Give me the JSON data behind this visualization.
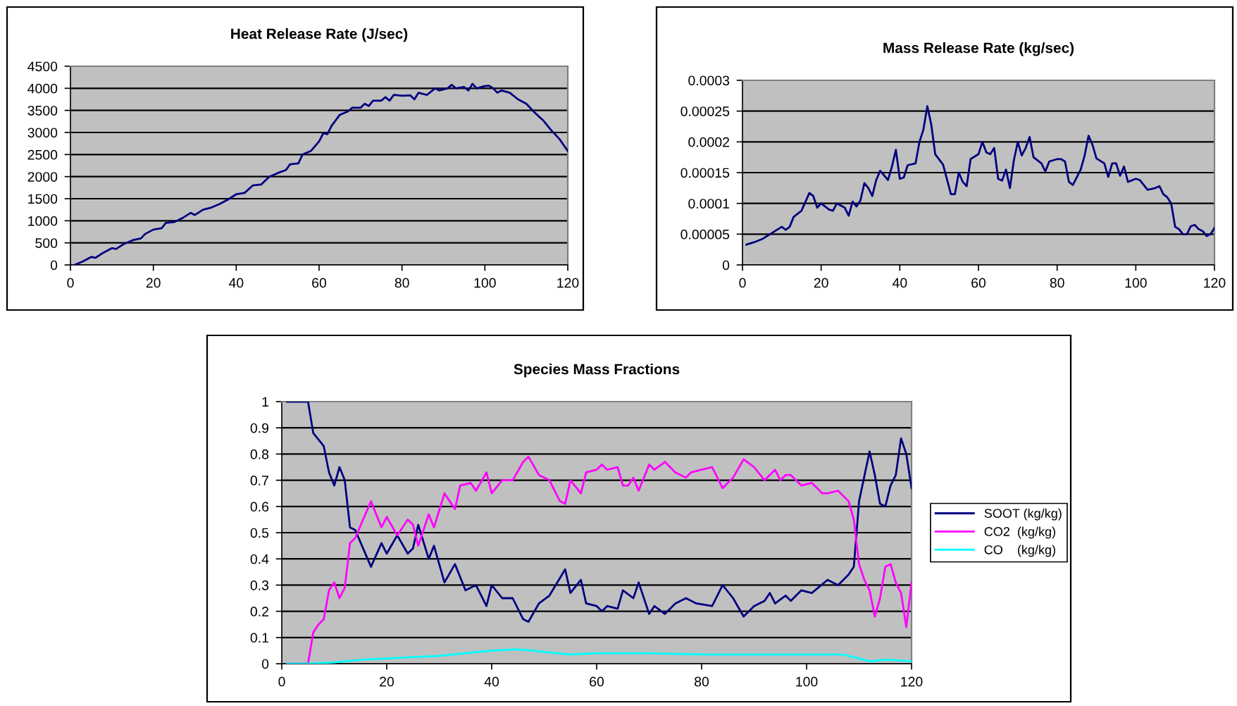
{
  "chart_data": [
    {
      "type": "line",
      "title": "Heat Release Rate (J/sec)",
      "xlim": [
        0,
        120
      ],
      "xticks": [
        0,
        20,
        40,
        60,
        80,
        100,
        120
      ],
      "ylim": [
        0,
        4500
      ],
      "yticks": [
        0,
        500,
        1000,
        1500,
        2000,
        2500,
        3000,
        3500,
        4000,
        4500
      ],
      "grid": "y",
      "legend": false,
      "series": [
        {
          "color": "#000080",
          "x": [
            1,
            3,
            5,
            6,
            8,
            10,
            11,
            13,
            15,
            17,
            18,
            20,
            22,
            23,
            25,
            27,
            29,
            30,
            32,
            34,
            36,
            38,
            40,
            42,
            44,
            46,
            48,
            50,
            52,
            53,
            55,
            56,
            58,
            60,
            61,
            62,
            63,
            65,
            67,
            68,
            70,
            71,
            72,
            73,
            75,
            76,
            77,
            78,
            80,
            82,
            83,
            84,
            86,
            88,
            89,
            91,
            92,
            93,
            95,
            96,
            97,
            98,
            100,
            101,
            102,
            103,
            104,
            106,
            108,
            110,
            112,
            114,
            116,
            118,
            120
          ],
          "values": [
            0,
            80,
            180,
            160,
            280,
            380,
            360,
            480,
            560,
            600,
            700,
            800,
            830,
            950,
            970,
            1060,
            1180,
            1130,
            1250,
            1300,
            1380,
            1480,
            1600,
            1630,
            1800,
            1820,
            2000,
            2080,
            2150,
            2280,
            2300,
            2500,
            2580,
            2800,
            2980,
            2960,
            3150,
            3400,
            3480,
            3560,
            3560,
            3650,
            3600,
            3720,
            3720,
            3800,
            3720,
            3850,
            3830,
            3840,
            3750,
            3900,
            3850,
            4000,
            3950,
            4000,
            4080,
            4000,
            4030,
            3950,
            4100,
            4000,
            4050,
            4060,
            4000,
            3900,
            3950,
            3900,
            3750,
            3650,
            3450,
            3280,
            3050,
            2850,
            2580
          ]
        }
      ]
    },
    {
      "type": "line",
      "title": "Mass Release Rate (kg/sec)",
      "xlim": [
        0,
        120
      ],
      "xticks": [
        0,
        20,
        40,
        60,
        80,
        100,
        120
      ],
      "ylim": [
        0,
        0.0003
      ],
      "yticks": [
        0,
        {
          "value": 5e-05,
          "label": "0.00005"
        },
        {
          "value": 0.0001,
          "label": "0.0001"
        },
        {
          "value": 0.00015,
          "label": "0.00015"
        },
        {
          "value": 0.0002,
          "label": "0.0002"
        },
        {
          "value": 0.00025,
          "label": "0.00025"
        },
        {
          "value": 0.0003,
          "label": "0.0003"
        }
      ],
      "grid": "y",
      "legend": false,
      "series": [
        {
          "color": "#000080",
          "x": [
            1,
            3,
            5,
            7,
            9,
            10,
            11,
            12,
            13,
            15,
            17,
            18,
            19,
            20,
            22,
            23,
            24,
            26,
            27,
            28,
            29,
            30,
            31,
            32,
            33,
            34,
            35,
            37,
            38,
            39,
            40,
            41,
            42,
            44,
            45,
            46,
            47,
            48,
            49,
            51,
            53,
            54,
            55,
            56,
            57,
            58,
            60,
            61,
            62,
            63,
            64,
            65,
            66,
            67,
            68,
            69,
            70,
            71,
            72,
            73,
            74,
            76,
            77,
            78,
            80,
            81,
            82,
            83,
            84,
            86,
            87,
            88,
            89,
            90,
            92,
            93,
            94,
            95,
            96,
            97,
            98,
            100,
            101,
            102,
            103,
            105,
            106,
            107,
            108,
            109,
            110,
            111,
            112,
            113,
            114,
            115,
            116,
            117,
            118,
            119,
            120
          ],
          "values": [
            3.3e-05,
            3.7e-05,
            4.2e-05,
            5e-05,
            5.8e-05,
            6.2e-05,
            5.7e-05,
            6.2e-05,
            7.8e-05,
            8.8e-05,
            0.000117,
            0.000112,
            9.3e-05,
            0.0001,
            9e-05,
            8.8e-05,
            0.0001,
            9.3e-05,
            8e-05,
            0.000103,
            9.5e-05,
            0.000105,
            0.000133,
            0.000125,
            0.000112,
            0.000138,
            0.000153,
            0.000138,
            0.00016,
            0.000187,
            0.00014,
            0.000142,
            0.000162,
            0.000165,
            0.0002,
            0.00022,
            0.000258,
            0.000228,
            0.00018,
            0.000163,
            0.000115,
            0.000115,
            0.00015,
            0.000135,
            0.000128,
            0.000172,
            0.00018,
            0.0002,
            0.000183,
            0.00018,
            0.00019,
            0.00014,
            0.000137,
            0.000155,
            0.000125,
            0.00017,
            0.0002,
            0.000178,
            0.00019,
            0.000208,
            0.000175,
            0.000165,
            0.000152,
            0.000168,
            0.000172,
            0.000172,
            0.000168,
            0.000135,
            0.00013,
            0.000155,
            0.000178,
            0.00021,
            0.000195,
            0.000173,
            0.000165,
            0.000143,
            0.000165,
            0.000165,
            0.000145,
            0.00016,
            0.000135,
            0.00014,
            0.000138,
            0.00013,
            0.000122,
            0.000125,
            0.000128,
            0.000115,
            0.00011,
            0.0001,
            6.2e-05,
            5.8e-05,
            5e-05,
            5e-05,
            6.3e-05,
            6.5e-05,
            5.8e-05,
            5.5e-05,
            4.7e-05,
            5e-05,
            6e-05
          ]
        }
      ]
    },
    {
      "type": "line",
      "title": "Species Mass Fractions",
      "xlim": [
        0,
        120
      ],
      "xticks": [
        0,
        20,
        40,
        60,
        80,
        100,
        120
      ],
      "ylim": [
        0,
        1
      ],
      "yticks": [
        0,
        0.1,
        0.2,
        0.3,
        0.4,
        0.5,
        0.6,
        0.7,
        0.8,
        0.9,
        1
      ],
      "grid": "y",
      "legend": "right",
      "series": [
        {
          "name": "SOOT (kg/kg)",
          "color": "#000080",
          "x": [
            1,
            5,
            6,
            8,
            9,
            10,
            11,
            12,
            13,
            14,
            17,
            19,
            20,
            22,
            24,
            25,
            26,
            28,
            29,
            31,
            33,
            35,
            37,
            39,
            40,
            42,
            44,
            46,
            47,
            49,
            51,
            54,
            55,
            57,
            58,
            60,
            61,
            62,
            64,
            65,
            67,
            68,
            70,
            71,
            73,
            75,
            77,
            79,
            82,
            84,
            86,
            88,
            90,
            92,
            93,
            94,
            96,
            97,
            99,
            101,
            104,
            106,
            108,
            109,
            110,
            112,
            113,
            114,
            115,
            116,
            117,
            118,
            119,
            120
          ],
          "values": [
            1,
            1,
            0.88,
            0.83,
            0.73,
            0.68,
            0.75,
            0.7,
            0.52,
            0.51,
            0.37,
            0.46,
            0.42,
            0.49,
            0.42,
            0.44,
            0.53,
            0.4,
            0.45,
            0.31,
            0.38,
            0.28,
            0.3,
            0.22,
            0.3,
            0.25,
            0.25,
            0.17,
            0.16,
            0.23,
            0.26,
            0.36,
            0.27,
            0.32,
            0.23,
            0.22,
            0.2,
            0.22,
            0.21,
            0.28,
            0.25,
            0.31,
            0.19,
            0.22,
            0.19,
            0.23,
            0.25,
            0.23,
            0.22,
            0.3,
            0.25,
            0.18,
            0.22,
            0.24,
            0.27,
            0.23,
            0.26,
            0.24,
            0.28,
            0.27,
            0.32,
            0.3,
            0.34,
            0.37,
            0.62,
            0.81,
            0.72,
            0.61,
            0.6,
            0.68,
            0.72,
            0.86,
            0.8,
            0.67
          ]
        },
        {
          "name": "CO2  (kg/kg)",
          "color": "#ff00ff",
          "x": [
            1,
            5,
            6,
            7,
            8,
            9,
            10,
            11,
            12,
            13,
            14,
            17,
            19,
            20,
            22,
            24,
            25,
            26,
            28,
            29,
            31,
            32,
            33,
            34,
            36,
            37,
            39,
            40,
            42,
            44,
            46,
            47,
            49,
            51,
            53,
            54,
            55,
            57,
            58,
            60,
            61,
            62,
            64,
            65,
            66,
            67,
            68,
            70,
            71,
            73,
            75,
            77,
            78,
            80,
            82,
            84,
            86,
            88,
            90,
            92,
            94,
            95,
            96,
            97,
            99,
            101,
            103,
            104,
            106,
            108,
            109,
            110,
            111,
            112,
            113,
            114,
            115,
            116,
            117,
            118,
            119,
            120
          ],
          "values": [
            0,
            0,
            0.12,
            0.15,
            0.17,
            0.28,
            0.31,
            0.25,
            0.29,
            0.46,
            0.48,
            0.62,
            0.52,
            0.56,
            0.49,
            0.55,
            0.53,
            0.45,
            0.57,
            0.52,
            0.65,
            0.62,
            0.59,
            0.68,
            0.69,
            0.66,
            0.73,
            0.65,
            0.7,
            0.7,
            0.77,
            0.79,
            0.72,
            0.7,
            0.62,
            0.61,
            0.7,
            0.65,
            0.73,
            0.74,
            0.76,
            0.74,
            0.75,
            0.68,
            0.68,
            0.71,
            0.66,
            0.76,
            0.74,
            0.77,
            0.73,
            0.71,
            0.73,
            0.74,
            0.75,
            0.67,
            0.71,
            0.78,
            0.75,
            0.7,
            0.74,
            0.7,
            0.72,
            0.72,
            0.68,
            0.69,
            0.65,
            0.65,
            0.66,
            0.62,
            0.55,
            0.38,
            0.32,
            0.28,
            0.18,
            0.25,
            0.37,
            0.38,
            0.31,
            0.27,
            0.14,
            0.31
          ]
        },
        {
          "name": "CO    (kg/kg)",
          "color": "#00ffff",
          "x": [
            1,
            5,
            10,
            15,
            20,
            25,
            30,
            35,
            40,
            45,
            48,
            50,
            55,
            60,
            65,
            70,
            80,
            90,
            100,
            107,
            110,
            112,
            115,
            120
          ],
          "values": [
            0,
            0,
            0.005,
            0.015,
            0.02,
            0.025,
            0.03,
            0.04,
            0.05,
            0.055,
            0.05,
            0.045,
            0.035,
            0.04,
            0.04,
            0.04,
            0.035,
            0.035,
            0.035,
            0.035,
            0.02,
            0.01,
            0.015,
            0.01
          ]
        }
      ]
    }
  ]
}
